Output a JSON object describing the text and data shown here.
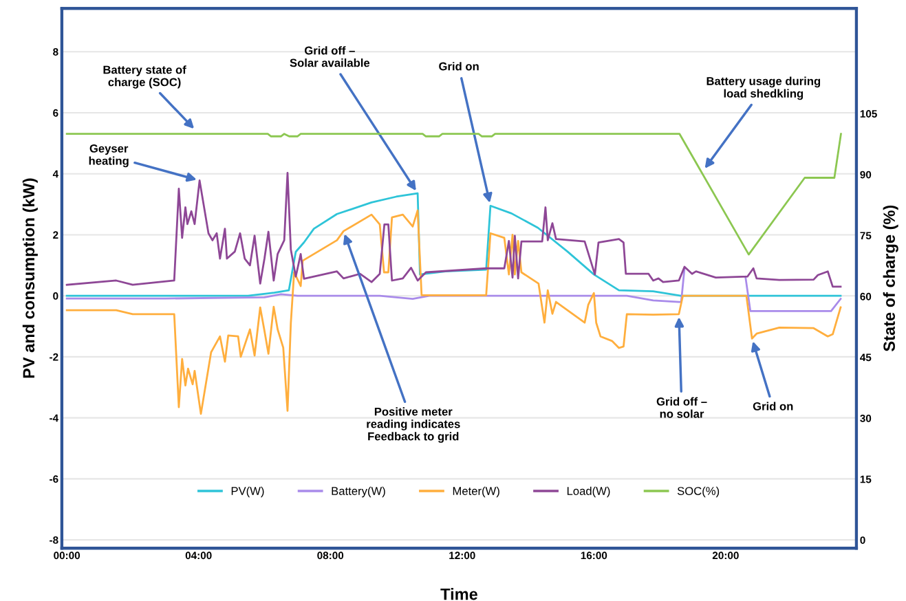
{
  "chart_data": {
    "type": "line",
    "xlabel": "Time",
    "ylabel": "PV and consumption (kW)",
    "y2label": "State of charge (%)",
    "xlim": [
      -0.15,
      23.97
    ],
    "xticks": [
      {
        "value": 0,
        "label": "00:00"
      },
      {
        "value": 4,
        "label": "04:00"
      },
      {
        "value": 8,
        "label": "08:00"
      },
      {
        "value": 12,
        "label": "12:00"
      },
      {
        "value": 16,
        "label": "16:00"
      },
      {
        "value": 20,
        "label": "20:00"
      }
    ],
    "ylim": [
      -8.27,
      9.42
    ],
    "yticks": [
      -8,
      -6,
      -4,
      -2,
      0,
      2,
      4,
      6,
      8
    ],
    "y2lim": [
      -2.0,
      130.9
    ],
    "y2ticks": [
      0,
      15,
      30,
      45,
      60,
      75,
      90,
      105
    ],
    "grid": "y",
    "legend": "bottom",
    "line_style": "solid",
    "marker": "none",
    "series": [
      {
        "name": "PV(W)",
        "color": "#2ec4d8",
        "x": [
          0,
          5.5,
          6.3,
          6.74,
          6.95,
          7.2,
          7.5,
          8.2,
          9.25,
          10.0,
          10.65,
          10.72,
          11.5,
          12.73,
          12.86,
          13.5,
          14.3,
          15.2,
          16.0,
          16.76,
          17.8,
          18.64,
          23.49
        ],
        "values": [
          0,
          0,
          0.1,
          0.18,
          1.44,
          1.75,
          2.2,
          2.68,
          3.06,
          3.25,
          3.36,
          0.7,
          0.8,
          0.86,
          2.95,
          2.7,
          2.23,
          1.45,
          0.7,
          0.18,
          0.15,
          0,
          0
        ]
      },
      {
        "name": "Battery(W)",
        "color": "#a98bea",
        "x": [
          0,
          3.0,
          6.0,
          6.5,
          7.0,
          9.5,
          10.5,
          11.0,
          17.0,
          17.8,
          18.58,
          18.65,
          18.75,
          18.8,
          20.6,
          20.75,
          23.2,
          23.49
        ],
        "values": [
          -0.09,
          -0.09,
          -0.05,
          0.05,
          0,
          0,
          -0.1,
          0,
          0,
          -0.15,
          -0.2,
          -0.2,
          0.9,
          null,
          0.63,
          -0.5,
          -0.5,
          -0.1
        ]
      },
      {
        "name": "Meter(W)",
        "color": "#ffae3d",
        "x": [
          0,
          1.5,
          2.0,
          3.26,
          3.4,
          3.5,
          3.6,
          3.68,
          3.82,
          3.88,
          4.07,
          4.38,
          4.65,
          4.8,
          4.9,
          5.2,
          5.28,
          5.56,
          5.7,
          5.87,
          6.0,
          6.12,
          6.28,
          6.4,
          6.57,
          6.7,
          6.8,
          6.9,
          7.1,
          7.16,
          8.2,
          8.4,
          9.25,
          9.5,
          9.63,
          9.76,
          9.87,
          10.2,
          10.5,
          10.65,
          10.77,
          12.73,
          12.86,
          13.28,
          13.42,
          13.53,
          13.6,
          13.7,
          13.8,
          14.32,
          14.5,
          14.6,
          14.74,
          14.85,
          15.72,
          15.83,
          16.0,
          16.07,
          16.2,
          16.55,
          16.76,
          16.9,
          17.0,
          17.8,
          18.58,
          18.7,
          20.63,
          20.8,
          20.94,
          21.63,
          22.67,
          23.1,
          23.25,
          23.49
        ],
        "values": [
          -0.47,
          -0.47,
          -0.6,
          -0.6,
          -3.65,
          -2.07,
          -2.94,
          -2.39,
          -2.9,
          -2.46,
          -3.87,
          -1.85,
          -1.33,
          -2.16,
          -1.3,
          -1.33,
          -2.0,
          -1.1,
          -1.96,
          -0.38,
          -1.15,
          -1.9,
          -0.36,
          -1.1,
          -1.7,
          -3.77,
          -0.9,
          0.77,
          0.32,
          1.15,
          1.82,
          2.12,
          2.66,
          2.34,
          0.77,
          0.77,
          2.57,
          2.66,
          2.27,
          2.8,
          0.02,
          0.02,
          2.05,
          1.9,
          0.7,
          2.0,
          0.7,
          1.8,
          0.77,
          0.4,
          -0.88,
          0.18,
          -0.59,
          -0.2,
          -0.88,
          -0.29,
          0.09,
          -0.88,
          -1.33,
          -1.48,
          -1.71,
          -1.66,
          -0.6,
          -0.62,
          -0.6,
          0,
          0,
          -1.4,
          -1.24,
          -1.04,
          -1.06,
          -1.33,
          -1.26,
          -0.38
        ]
      },
      {
        "name": "Load(W)",
        "color": "#8e4796",
        "x": [
          0,
          1.5,
          2.0,
          3.26,
          3.4,
          3.5,
          3.6,
          3.66,
          3.78,
          3.88,
          4.03,
          4.3,
          4.42,
          4.55,
          4.65,
          4.8,
          4.86,
          5.1,
          5.26,
          5.4,
          5.56,
          5.7,
          5.87,
          6.0,
          6.12,
          6.28,
          6.4,
          6.6,
          6.7,
          6.8,
          6.95,
          7.1,
          7.2,
          8.2,
          8.4,
          8.9,
          9.25,
          9.5,
          9.64,
          9.76,
          9.87,
          10.2,
          10.45,
          10.65,
          10.9,
          12.73,
          13.28,
          13.42,
          13.53,
          13.6,
          13.7,
          13.8,
          14.43,
          14.53,
          14.6,
          14.74,
          14.85,
          15.72,
          16.03,
          16.14,
          16.76,
          16.9,
          16.97,
          17.66,
          17.8,
          17.96,
          18.1,
          18.58,
          18.75,
          18.98,
          19.1,
          19.7,
          20.66,
          20.84,
          20.94,
          21.63,
          22.67,
          22.8,
          23.1,
          23.25,
          23.49
        ],
        "values": [
          0.36,
          0.5,
          0.36,
          0.5,
          3.51,
          1.9,
          2.9,
          2.35,
          2.77,
          2.35,
          3.78,
          2.05,
          1.82,
          2.05,
          1.22,
          2.2,
          1.22,
          1.45,
          2.05,
          1.22,
          1.0,
          1.97,
          0.4,
          1.22,
          2.1,
          0.5,
          1.37,
          1.82,
          4.03,
          1.52,
          0.63,
          1.37,
          0.56,
          0.8,
          0.57,
          0.72,
          0.45,
          0.72,
          2.34,
          2.34,
          0.5,
          0.57,
          0.92,
          0.5,
          0.77,
          0.9,
          0.9,
          1.8,
          0.6,
          1.97,
          0.57,
          1.78,
          1.78,
          2.9,
          1.82,
          2.38,
          1.86,
          1.78,
          0.7,
          1.75,
          1.86,
          1.75,
          0.72,
          0.72,
          0.5,
          0.57,
          0.45,
          0.5,
          0.95,
          0.72,
          0.8,
          0.6,
          0.63,
          0.9,
          0.57,
          0.52,
          0.53,
          0.68,
          0.8,
          0.3,
          0.3
        ]
      },
      {
        "name": "SOC(%)",
        "color": "#8cc751",
        "axis": "y2",
        "x": [
          0,
          6.1,
          6.2,
          6.5,
          6.6,
          6.75,
          7.0,
          7.1,
          10.8,
          10.9,
          11.3,
          11.4,
          12.5,
          12.6,
          12.9,
          13.0,
          18.6,
          20.7,
          22.4,
          23.3,
          23.5
        ],
        "values": [
          100,
          100,
          99.4,
          99.4,
          100,
          99.4,
          99.4,
          100,
          100,
          99.4,
          99.4,
          100,
          100,
          99.4,
          99.4,
          100,
          100,
          70.3,
          89.2,
          89.2,
          100
        ]
      }
    ],
    "annotations": [
      "Battery state of\ncharge (SOC)",
      {
        "text": "Geyser\nheating",
        "x": 4.03,
        "y": 3.78
      },
      {
        "text": "Grid off –\nSolar available",
        "x": 10.65,
        "y": 3.36
      },
      {
        "text": "Grid on",
        "x": 12.86,
        "y": 2.95
      },
      "Battery usage during\nload shedkling",
      {
        "text": "Positive meter\nreading indicates\nFeedback to grid",
        "x": 8.4,
        "y": 2.12
      },
      {
        "text": "Grid off –\nno solar",
        "x": 18.58,
        "y": -0.6
      },
      {
        "text": "Grid on",
        "x": 20.8,
        "y": -1.4
      }
    ]
  }
}
